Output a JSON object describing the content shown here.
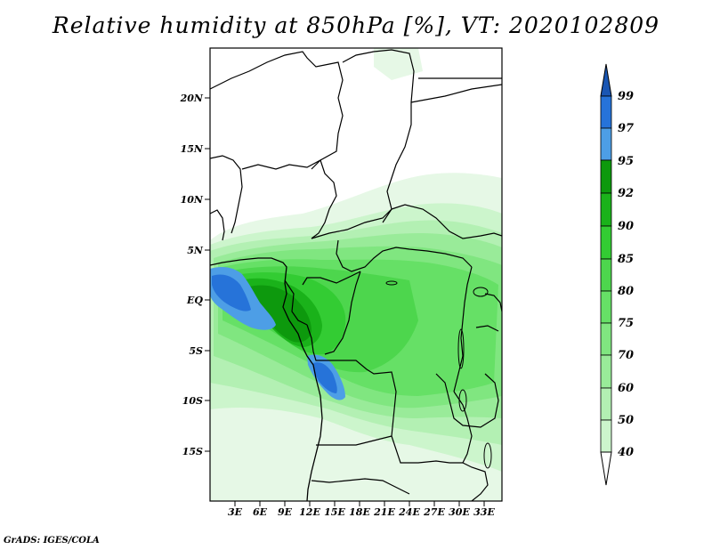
{
  "title": "Relative humidity at 850hPa [%], VT: 2020102809",
  "credit": "GrADS: IGES/COLA",
  "map": {
    "lat_labels": [
      "20N",
      "15N",
      "10N",
      "5N",
      "EQ",
      "5S",
      "10S",
      "15S"
    ],
    "lon_labels": [
      "3E",
      "6E",
      "9E",
      "12E",
      "15E",
      "18E",
      "21E",
      "24E",
      "27E",
      "30E",
      "33E"
    ]
  },
  "colorbar": {
    "levels": [
      "40",
      "50",
      "60",
      "70",
      "75",
      "80",
      "85",
      "90",
      "92",
      "95",
      "97",
      "99"
    ],
    "colors": [
      "#e6f8e6",
      "#ccf5cc",
      "#b3f0b3",
      "#99eb99",
      "#80e680",
      "#66e066",
      "#4dd64d",
      "#33cc33",
      "#1ab21a",
      "#0d990d",
      "#4d9ee6",
      "#2673d9",
      "#1a56b3"
    ]
  },
  "palette": {
    "land_base": "#ffffff",
    "border": "#000000",
    "frame": "#000000"
  }
}
